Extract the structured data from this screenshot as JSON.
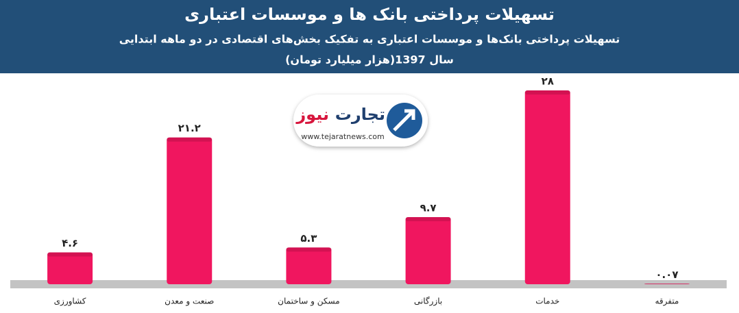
{
  "chart_data": {
    "type": "bar",
    "title": "تسهیلات پرداختی بانک ها و موسسات اعتباری",
    "subtitle": [
      "تسهیلات پرداختی بانک‌ها و موسسات اعتباری به تفکیک بخش‌های اقتصادی در دو ماهه ابتدایی",
      "سال 1397(هزار میلیارد تومان)"
    ],
    "categories": [
      "کشاورزی",
      "صنعت و معدن",
      "مسکن و ساختمان",
      "بازرگانی",
      "خدمات",
      "متفرقه"
    ],
    "values": [
      4.6,
      21.2,
      5.3,
      9.7,
      28,
      0.07
    ],
    "value_labels": [
      "۴.۶",
      "۲۱.۲",
      "۵.۳",
      "۹.۷",
      "۲۸",
      "۰.۰۷"
    ],
    "color": "#f0165f"
  },
  "logo": {
    "name_parts": [
      "تجارت",
      "نیوز"
    ],
    "url": "www.tejaratnews.com"
  }
}
